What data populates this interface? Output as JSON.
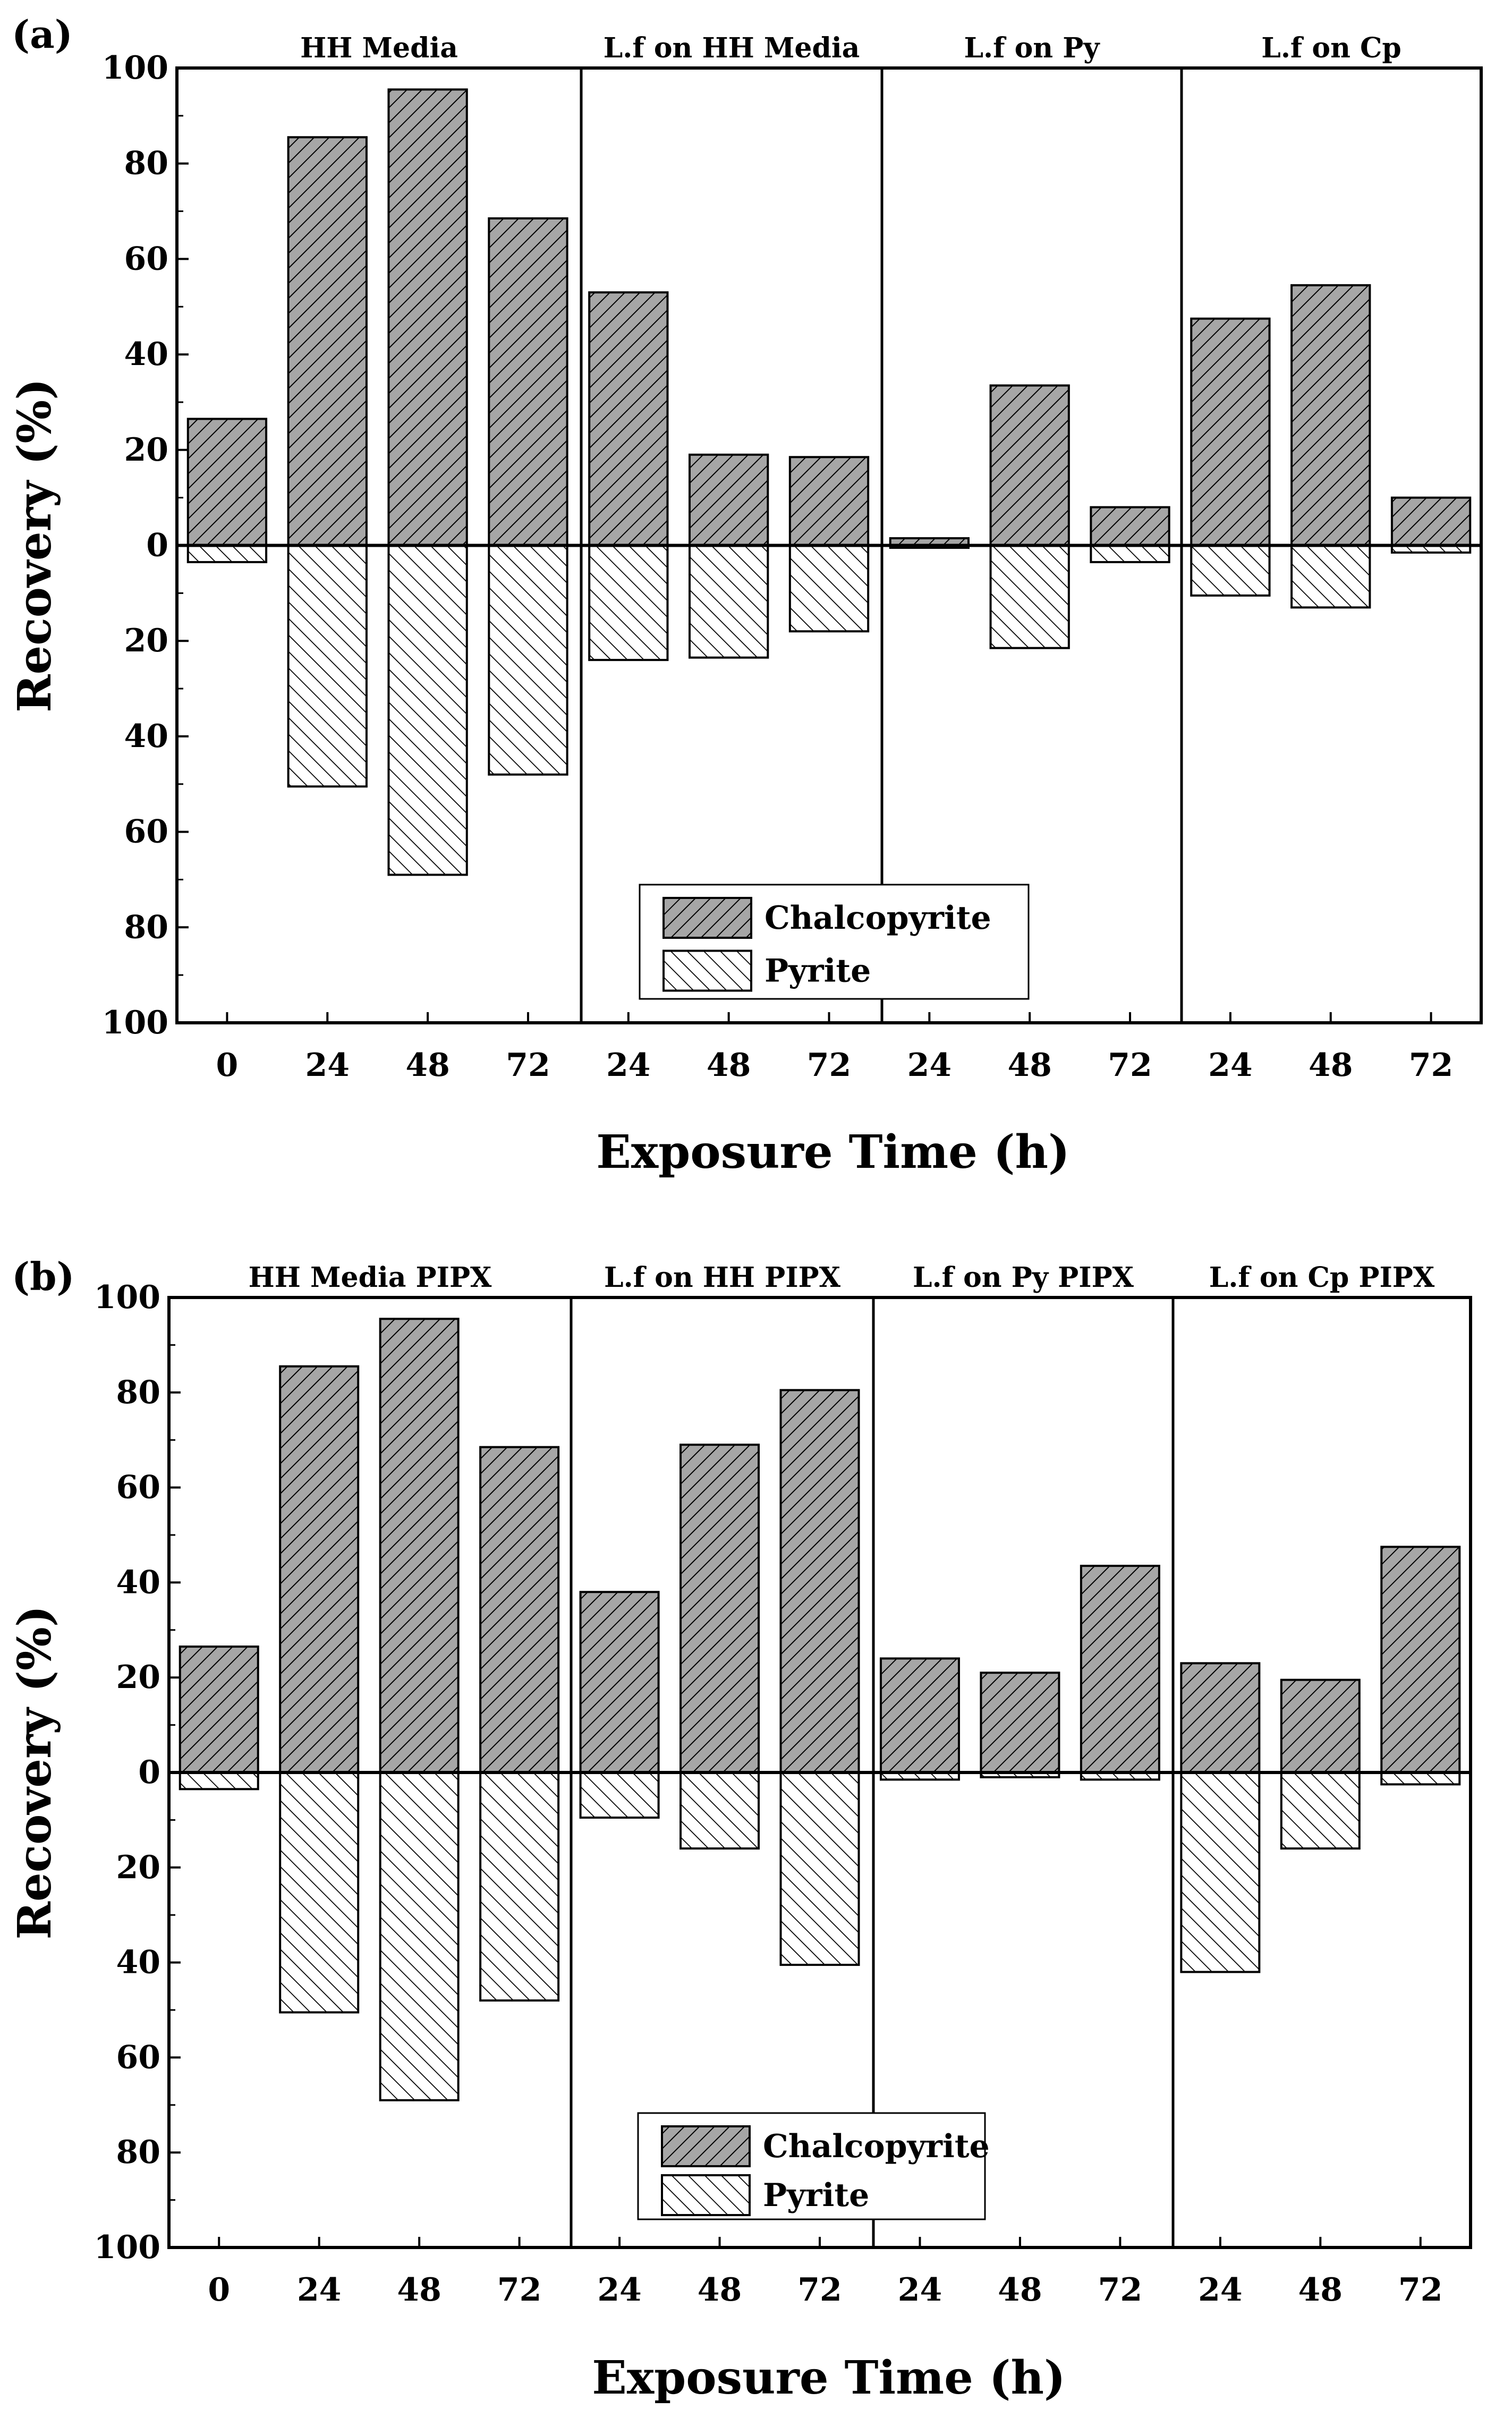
{
  "chart_data": [
    {
      "type": "bar",
      "panel_label": "(a)",
      "xlabel": "Exposure Time (h)",
      "ylabel": "Recovery (%)",
      "ylim": [
        -100,
        100
      ],
      "yticks": [
        "100",
        "80",
        "60",
        "40",
        "20",
        "0",
        "20",
        "40",
        "60",
        "80",
        "100"
      ],
      "sections": [
        {
          "title": "HH Media",
          "categories": [
            "0",
            "24",
            "48",
            "72"
          ]
        },
        {
          "title": "L.f on HH Media",
          "categories": [
            "24",
            "48",
            "72"
          ]
        },
        {
          "title": "L.f on Py",
          "categories": [
            "24",
            "48",
            "72"
          ]
        },
        {
          "title": "L.f on Cp",
          "categories": [
            "24",
            "48",
            "72"
          ]
        }
      ],
      "series": [
        {
          "name": "Chalcopyrite",
          "direction": "up",
          "values": [
            26.5,
            85.5,
            95.5,
            68.5,
            53,
            19,
            18.5,
            1.5,
            33.5,
            8,
            47.5,
            54.5,
            10
          ]
        },
        {
          "name": "Pyrite",
          "direction": "down",
          "values": [
            3.5,
            50.5,
            69,
            48,
            24,
            23.5,
            18,
            0.5,
            21.5,
            3.5,
            10.5,
            13,
            1.5
          ]
        }
      ],
      "legend": [
        "Chalcopyrite",
        "Pyrite"
      ],
      "legend_position": "bottom-center"
    },
    {
      "type": "bar",
      "panel_label": "(b)",
      "xlabel": "Exposure Time (h)",
      "ylabel": "Recovery (%)",
      "ylim": [
        -100,
        100
      ],
      "yticks": [
        "100",
        "80",
        "60",
        "40",
        "20",
        "0",
        "20",
        "40",
        "60",
        "80",
        "100"
      ],
      "sections": [
        {
          "title": "HH Media PIPX",
          "categories": [
            "0",
            "24",
            "48",
            "72"
          ]
        },
        {
          "title": "L.f on HH PIPX",
          "categories": [
            "24",
            "48",
            "72"
          ]
        },
        {
          "title": "L.f on Py PIPX",
          "categories": [
            "24",
            "48",
            "72"
          ]
        },
        {
          "title": "L.f on Cp PIPX",
          "categories": [
            "24",
            "48",
            "72"
          ]
        }
      ],
      "series": [
        {
          "name": "Chalcopyrite",
          "direction": "up",
          "values": [
            26.5,
            85.5,
            95.5,
            68.5,
            38,
            69,
            80.5,
            24,
            21,
            43.5,
            23,
            19.5,
            47.5
          ]
        },
        {
          "name": "Pyrite",
          "direction": "down",
          "values": [
            3.5,
            50.5,
            69,
            48,
            9.5,
            16,
            40.5,
            1.5,
            1,
            1.5,
            42,
            16,
            2.5
          ]
        }
      ],
      "legend": [
        "Chalcopyrite",
        "Pyrite"
      ],
      "legend_position": "bottom-center"
    }
  ]
}
